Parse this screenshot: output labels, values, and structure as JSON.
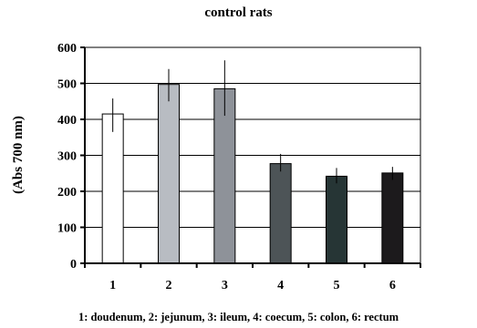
{
  "chart_data": {
    "type": "bar",
    "title": "control rats",
    "ylabel": "(Abs 700 nm)",
    "xlabel": "",
    "ylim": [
      0,
      600
    ],
    "yticks": [
      0,
      100,
      200,
      300,
      400,
      500,
      600
    ],
    "grid": true,
    "categories": [
      "1",
      "2",
      "3",
      "4",
      "5",
      "6"
    ],
    "values": [
      415,
      497,
      485,
      277,
      242,
      251
    ],
    "error_low": [
      365,
      450,
      410,
      255,
      222,
      232
    ],
    "error_high": [
      458,
      540,
      564,
      304,
      265,
      268
    ],
    "colors": [
      "#ffffff",
      "#b8bcc2",
      "#8e9299",
      "#4d5457",
      "#263535",
      "#1c1a1c"
    ],
    "caption": "1: doudenum, 2: jejunum, 3: ileum, 4: coecum, 5: colon, 6: rectum"
  }
}
